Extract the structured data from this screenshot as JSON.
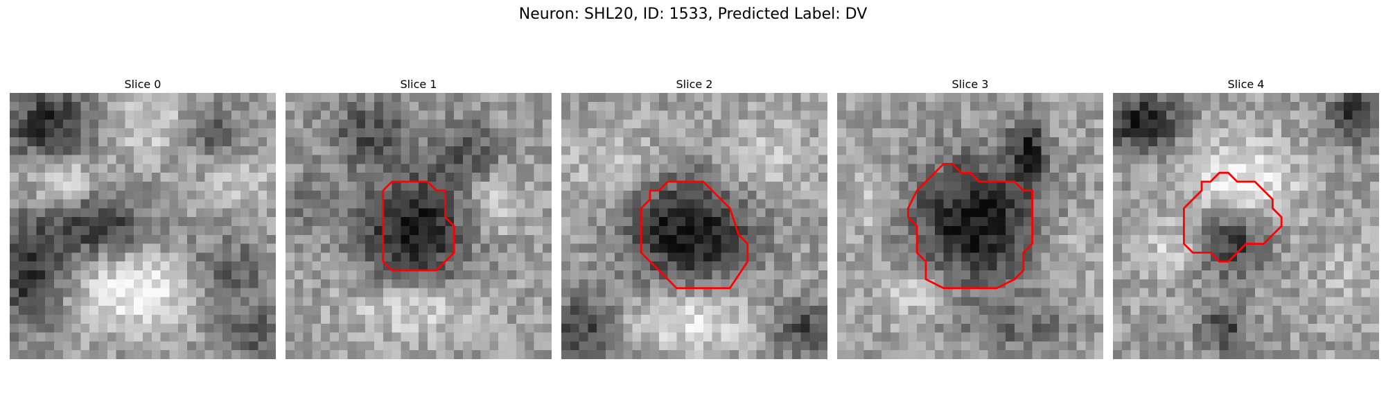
{
  "figure": {
    "title": "Neuron: SHL20, ID: 1533, Predicted Label: DV"
  },
  "panels": [
    {
      "title": "Slice 0",
      "has_contour": false
    },
    {
      "title": "Slice 1",
      "has_contour": true
    },
    {
      "title": "Slice 2",
      "has_contour": true
    },
    {
      "title": "Slice 3",
      "has_contour": true
    },
    {
      "title": "Slice 4",
      "has_contour": true
    }
  ],
  "colors": {
    "contour": "#ff0000",
    "image_colormap": "gray"
  }
}
